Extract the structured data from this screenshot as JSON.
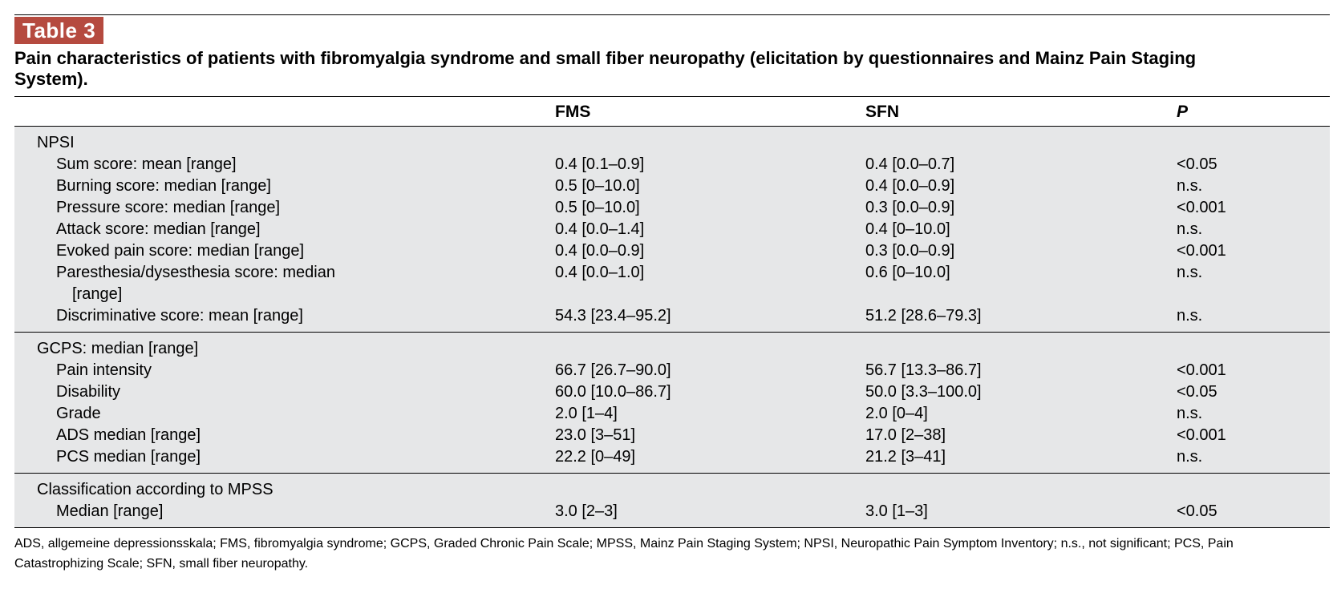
{
  "table_label": "Table 3",
  "caption": "Pain characteristics of patients with fibromyalgia syndrome and small fiber neuropathy (elicitation by questionnaires and Mainz Pain Staging System).",
  "headers": {
    "label": "",
    "fms": "FMS",
    "sfn": "SFN",
    "p": "P"
  },
  "sections": [
    {
      "title": "NPSI",
      "rows": [
        {
          "label": "Sum score: mean [range]",
          "fms": "0.4 [0.1–0.9]",
          "sfn": "0.4 [0.0–0.7]",
          "p": "<0.05"
        },
        {
          "label": "Burning score: median [range]",
          "fms": "0.5 [0–10.0]",
          "sfn": "0.4 [0.0–0.9]",
          "p": "n.s."
        },
        {
          "label": "Pressure score: median [range]",
          "fms": "0.5 [0–10.0]",
          "sfn": "0.3 [0.0–0.9]",
          "p": "<0.001"
        },
        {
          "label": "Attack score: median [range]",
          "fms": "0.4 [0.0–1.4]",
          "sfn": "0.4 [0–10.0]",
          "p": "n.s."
        },
        {
          "label": "Evoked pain score: median [range]",
          "fms": "0.4 [0.0–0.9]",
          "sfn": "0.3 [0.0–0.9]",
          "p": "<0.001"
        },
        {
          "label": "Paresthesia/dysesthesia score: median",
          "label_cont": "[range]",
          "fms": "0.4 [0.0–1.0]",
          "sfn": "0.6 [0–10.0]",
          "p": "n.s."
        },
        {
          "label": "Discriminative score: mean [range]",
          "fms": "54.3 [23.4–95.2]",
          "sfn": "51.2 [28.6–79.3]",
          "p": "n.s."
        }
      ]
    },
    {
      "title": "GCPS: median [range]",
      "rows": [
        {
          "label": "Pain intensity",
          "fms": "66.7 [26.7–90.0]",
          "sfn": "56.7 [13.3–86.7]",
          "p": "<0.001"
        },
        {
          "label": "Disability",
          "fms": "60.0 [10.0–86.7]",
          "sfn": "50.0 [3.3–100.0]",
          "p": "<0.05"
        },
        {
          "label": "Grade",
          "fms": "2.0 [1–4]",
          "sfn": "2.0 [0–4]",
          "p": "n.s."
        },
        {
          "label": "ADS median [range]",
          "fms": "23.0 [3–51]",
          "sfn": "17.0 [2–38]",
          "p": "<0.001"
        },
        {
          "label": "PCS median [range]",
          "fms": "22.2 [0–49]",
          "sfn": "21.2 [3–41]",
          "p": "n.s."
        }
      ]
    },
    {
      "title": "Classification according to MPSS",
      "rows": [
        {
          "label": "Median [range]",
          "fms": "3.0 [2–3]",
          "sfn": "3.0 [1–3]",
          "p": "<0.05"
        }
      ]
    }
  ],
  "footnote": "ADS, allgemeine depressionsskala; FMS, fibromyalgia syndrome; GCPS, Graded Chronic Pain Scale; MPSS, Mainz Pain Staging System; NPSI, Neuropathic Pain Symptom Inventory; n.s., not significant; PCS, Pain Catastrophizing Scale; SFN, small fiber neuropathy."
}
